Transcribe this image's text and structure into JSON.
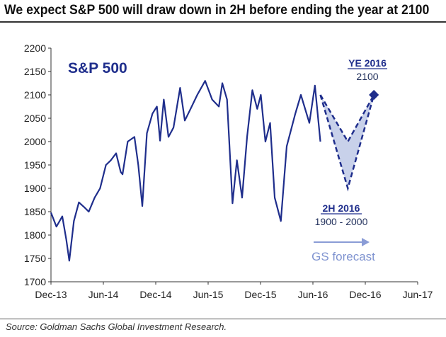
{
  "header": {
    "title": "We expect S&P 500 will draw down in 2H before ending the year at 2100"
  },
  "footer": {
    "source": "Source: Goldman Sachs Global Investment Research."
  },
  "chart_data": {
    "type": "line",
    "title": "We expect S&P 500 will draw down in 2H before ending the year at 2100",
    "xlabel": "",
    "ylabel": "",
    "ylim": [
      1700,
      2200
    ],
    "yticks": [
      1700,
      1750,
      1800,
      1850,
      1900,
      1950,
      2000,
      2050,
      2100,
      2150,
      2200
    ],
    "xlim": [
      "2013-12",
      "2017-06"
    ],
    "xticks": [
      "Dec-13",
      "Jun-14",
      "Dec-14",
      "Jun-15",
      "Dec-15",
      "Jun-16",
      "Dec-16",
      "Jun-17"
    ],
    "grid": false,
    "colors": {
      "line": "#1f2e8c",
      "forecast_fill": "#c8d1ea",
      "forecast_arrow": "#8a9cd6",
      "forecast_text": "#7f93d0"
    },
    "series": [
      {
        "name": "S&P 500",
        "x": [
          "2013-12-01",
          "2013-12-20",
          "2014-01-10",
          "2014-01-24",
          "2014-02-04",
          "2014-02-20",
          "2014-03-07",
          "2014-03-25",
          "2014-04-11",
          "2014-05-01",
          "2014-05-20",
          "2014-06-10",
          "2014-06-27",
          "2014-07-15",
          "2014-07-31",
          "2014-08-07",
          "2014-08-25",
          "2014-09-18",
          "2014-10-01",
          "2014-10-15",
          "2014-10-31",
          "2014-11-20",
          "2014-12-05",
          "2014-12-16",
          "2014-12-29",
          "2015-01-15",
          "2015-02-02",
          "2015-02-25",
          "2015-03-11",
          "2015-03-31",
          "2015-04-24",
          "2015-05-21",
          "2015-06-15",
          "2015-07-08",
          "2015-07-20",
          "2015-08-06",
          "2015-08-25",
          "2015-09-10",
          "2015-09-28",
          "2015-10-15",
          "2015-11-03",
          "2015-11-20",
          "2015-12-02",
          "2015-12-18",
          "2016-01-04",
          "2016-01-20",
          "2016-02-11",
          "2016-03-01",
          "2016-03-31",
          "2016-04-20",
          "2016-05-19",
          "2016-06-08",
          "2016-06-27"
        ],
        "values": [
          1848,
          1818,
          1840,
          1790,
          1745,
          1830,
          1870,
          1860,
          1850,
          1880,
          1900,
          1950,
          1960,
          1975,
          1935,
          1930,
          2000,
          2010,
          1950,
          1862,
          2018,
          2060,
          2075,
          2002,
          2090,
          2010,
          2030,
          2115,
          2045,
          2070,
          2100,
          2130,
          2090,
          2075,
          2125,
          2090,
          1868,
          1960,
          1880,
          2010,
          2110,
          2070,
          2100,
          2000,
          2040,
          1880,
          1830,
          1990,
          2060,
          2100,
          2040,
          2120,
          2000
        ]
      },
      {
        "name": "GS forecast",
        "x": [
          "2016-06-27",
          "2016-10-01",
          "2016-12-31"
        ],
        "values": [
          2100,
          2000,
          2100
        ],
        "lower": [
          2100,
          1900,
          2100
        ]
      }
    ],
    "annotations": [
      {
        "text": "S&P 500"
      },
      {
        "text": "YE 2016",
        "subtext": "2100"
      },
      {
        "text": "2H 2016",
        "subtext": "1900 - 2000"
      },
      {
        "text": "GS forecast"
      }
    ]
  }
}
